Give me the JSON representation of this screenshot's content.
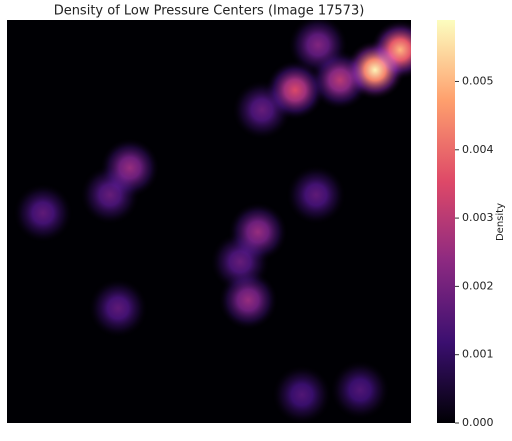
{
  "chart_data": {
    "type": "density",
    "title": "Density of Low Pressure Centers (Image 17573)",
    "colorbar_label": "Density",
    "x": [
      77,
      71.3,
      82.4,
      91.1,
      97.3,
      63.1,
      30.4,
      25.5,
      8.9,
      76.5,
      62.1,
      57.7,
      59.7,
      27.5,
      73,
      87.4
    ],
    "y": [
      6.2,
      17.4,
      14.9,
      12.4,
      7.4,
      22.3,
      36.7,
      43.4,
      47.9,
      43.4,
      52.6,
      60,
      69.5,
      71.5,
      93,
      91.8
    ],
    "values": [
      0.0022,
      0.0035,
      0.003,
      0.0058,
      0.005,
      0.0018,
      0.0025,
      0.0018,
      0.0017,
      0.0017,
      0.0025,
      0.0018,
      0.0025,
      0.0017,
      0.0015,
      0.0015
    ],
    "clim": [
      0,
      0.0059
    ],
    "cticks": [
      {
        "value": 0,
        "label": "0.000"
      },
      {
        "value": 0.001,
        "label": "0.001"
      },
      {
        "value": 0.002,
        "label": "0.002"
      },
      {
        "value": 0.003,
        "label": "0.003"
      },
      {
        "value": 0.004,
        "label": "0.004"
      },
      {
        "value": 0.005,
        "label": "0.005"
      }
    ],
    "colormap": [
      "#000004",
      "#3b0f70",
      "#8c2981",
      "#de4968",
      "#fe9f6d",
      "#fcfdbf"
    ]
  }
}
